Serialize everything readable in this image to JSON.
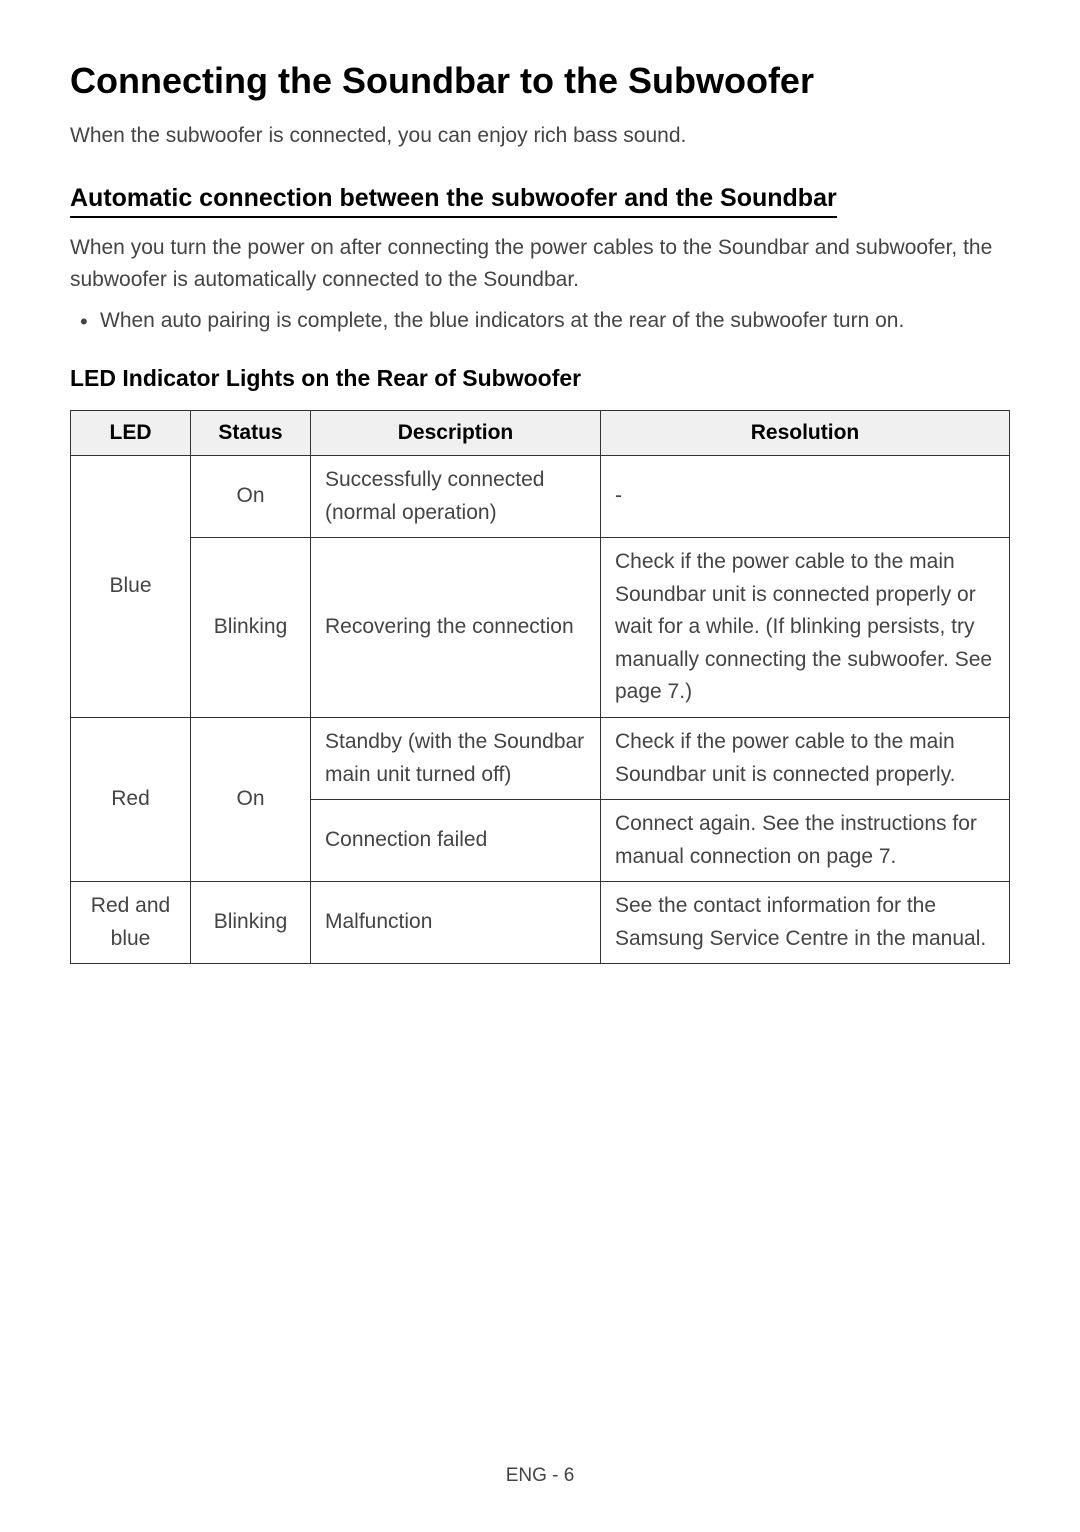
{
  "heading": "Connecting the Soundbar to the Subwoofer",
  "intro": "When the subwoofer is connected, you can enjoy rich bass sound.",
  "subheading": "Automatic connection between the subwoofer and the Soundbar",
  "body": "When you turn the power on after connecting the power cables to the Soundbar and subwoofer, the subwoofer is automatically connected to the Soundbar.",
  "bullet": "When auto pairing is complete, the blue indicators at the rear of the subwoofer turn on.",
  "table_heading": "LED Indicator Lights on the Rear of Subwoofer",
  "table": {
    "headers": {
      "led": "LED",
      "status": "Status",
      "description": "Description",
      "resolution": "Resolution"
    },
    "rows": {
      "r1": {
        "led": "Blue",
        "status": "On",
        "description": "Successfully connected (normal operation)",
        "resolution": "-"
      },
      "r2": {
        "status": "Blinking",
        "description": "Recovering the connection",
        "resolution": "Check if the power cable to the main Soundbar unit is connected properly or wait for a while. (If blinking persists, try manually connecting the subwoofer. See page 7.)"
      },
      "r3": {
        "led": "Red",
        "status": "On",
        "description": "Standby (with the Soundbar main unit turned off)",
        "resolution": "Check if the power cable to the main Soundbar unit is connected properly."
      },
      "r4": {
        "description": "Connection failed",
        "resolution": "Connect again. See the instructions for manual connection on page 7."
      },
      "r5": {
        "led": "Red and blue",
        "status": "Blinking",
        "description": "Malfunction",
        "resolution": "See the contact information for the Samsung Service Centre in the manual."
      }
    }
  },
  "footer": "ENG - 6"
}
